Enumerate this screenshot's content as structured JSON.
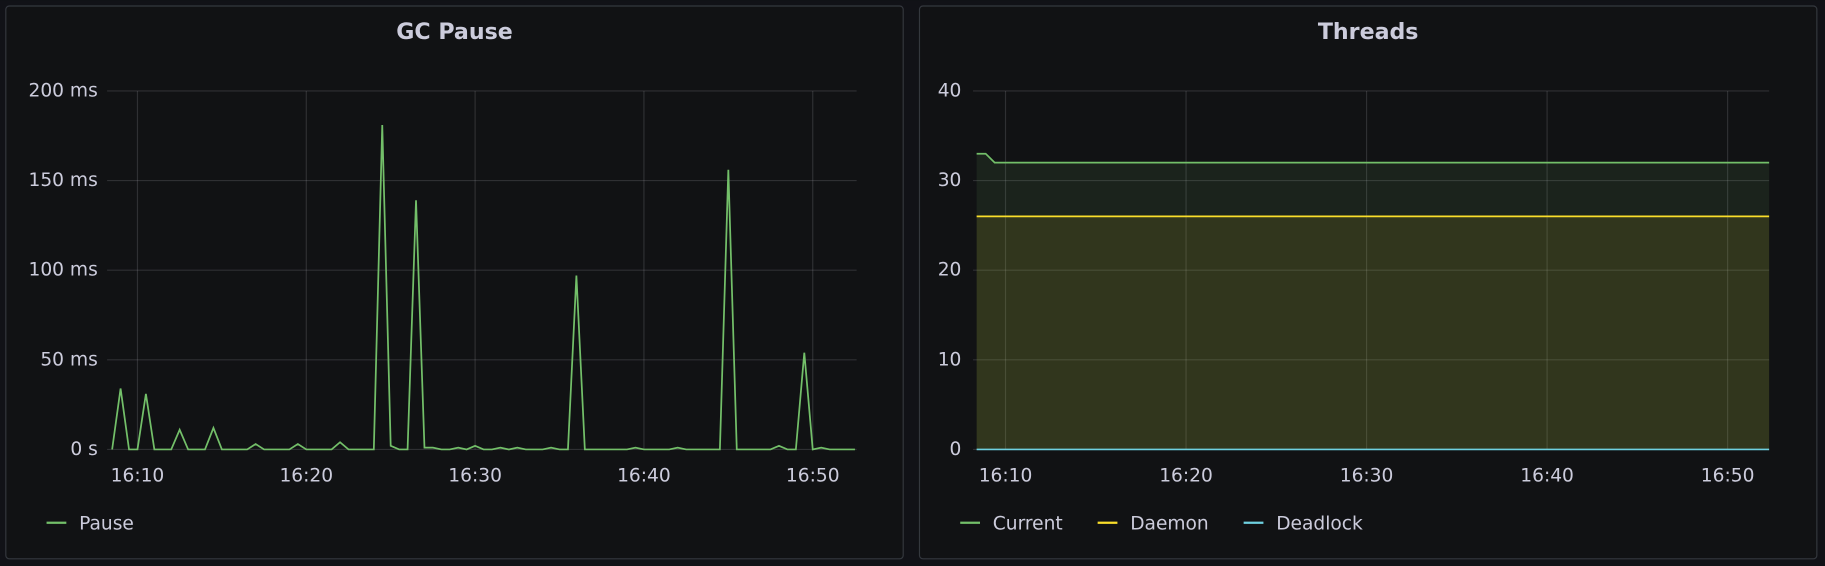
{
  "chart_data": [
    {
      "type": "line",
      "title": "GC Pause",
      "x": [
        968.5,
        969,
        969.5,
        970,
        970.5,
        971,
        971.5,
        972,
        972.5,
        973,
        973.5,
        974,
        974.5,
        975,
        975.5,
        976,
        976.5,
        977,
        977.5,
        978,
        978.5,
        979,
        979.5,
        980,
        980.5,
        981,
        981.5,
        982,
        982.5,
        983,
        983.5,
        984,
        984.5,
        985,
        985.5,
        986,
        986.5,
        987,
        987.5,
        988,
        988.5,
        989,
        989.5,
        990,
        990.5,
        991,
        991.5,
        992,
        992.5,
        993,
        993.5,
        994,
        994.5,
        995,
        995.5,
        996,
        996.5,
        997,
        997.5,
        998,
        998.5,
        999,
        999.5,
        1000,
        1000.5,
        1001,
        1001.5,
        1002,
        1002.5,
        1003,
        1003.5,
        1004,
        1004.5,
        1005,
        1005.5,
        1006,
        1006.5,
        1007,
        1007.5,
        1008,
        1008.5,
        1009,
        1009.5,
        1010,
        1010.5,
        1011,
        1011.5,
        1012,
        1012.5
      ],
      "series": [
        {
          "name": "Pause",
          "color": "#73bf69",
          "values": [
            0,
            34,
            0,
            0,
            31,
            0,
            0,
            0,
            11,
            0,
            0,
            0,
            12,
            0,
            0,
            0,
            0,
            3,
            0,
            0,
            0,
            0,
            3,
            0,
            0,
            0,
            0,
            4,
            0,
            0,
            0,
            0,
            181,
            2,
            0,
            0,
            139,
            1,
            1,
            0,
            0,
            1,
            0,
            2,
            0,
            0,
            1,
            0,
            1,
            0,
            0,
            0,
            1,
            0,
            0,
            97,
            0,
            0,
            0,
            0,
            0,
            0,
            1,
            0,
            0,
            0,
            0,
            1,
            0,
            0,
            0,
            0,
            0,
            156,
            0,
            0,
            0,
            0,
            0,
            2,
            0,
            0,
            54,
            0,
            1,
            0,
            0,
            0,
            0
          ]
        }
      ],
      "xlim": [
        968.2,
        1012.6
      ],
      "xticks": [
        {
          "value": 970,
          "label": "16:10"
        },
        {
          "value": 980,
          "label": "16:20"
        },
        {
          "value": 990,
          "label": "16:30"
        },
        {
          "value": 1000,
          "label": "16:40"
        },
        {
          "value": 1010,
          "label": "16:50"
        }
      ],
      "ylim": [
        0,
        200
      ],
      "yticks": [
        {
          "value": 0,
          "label": "0 s"
        },
        {
          "value": 50,
          "label": "50 ms"
        },
        {
          "value": 100,
          "label": "100 ms"
        },
        {
          "value": 150,
          "label": "150 ms"
        },
        {
          "value": 200,
          "label": "200 ms"
        }
      ],
      "grid": true,
      "area": false
    },
    {
      "type": "line",
      "title": "Threads",
      "x": [
        968.4,
        968.9,
        969.4,
        1012.3
      ],
      "series": [
        {
          "name": "Current",
          "color": "#73bf69",
          "values": [
            33,
            33,
            32,
            32
          ]
        },
        {
          "name": "Daemon",
          "color": "#fade2a",
          "values": [
            26,
            26,
            26,
            26
          ]
        },
        {
          "name": "Deadlock",
          "color": "#6ed0e0",
          "values": [
            0,
            0,
            0,
            0
          ]
        }
      ],
      "xlim": [
        968.2,
        1012.3
      ],
      "xticks": [
        {
          "value": 970,
          "label": "16:10"
        },
        {
          "value": 980,
          "label": "16:20"
        },
        {
          "value": 990,
          "label": "16:30"
        },
        {
          "value": 1000,
          "label": "16:40"
        },
        {
          "value": 1010,
          "label": "16:50"
        }
      ],
      "ylim": [
        0,
        40
      ],
      "yticks": [
        0,
        10,
        20,
        30,
        40
      ],
      "grid": true,
      "area": true
    }
  ]
}
